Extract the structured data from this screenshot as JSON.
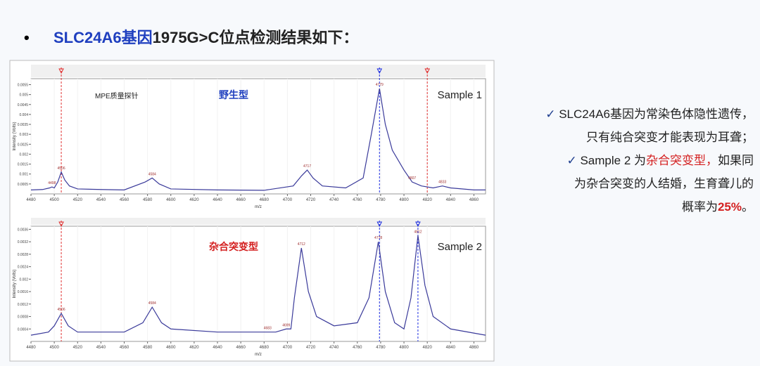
{
  "slide": {
    "bullet": "•",
    "title": [
      {
        "text": "SLC24A6基因",
        "color": "#1f3fbf"
      },
      {
        "text": "1975G>C位点检测结果如下：",
        "color": "#222222"
      }
    ],
    "notes": [
      [
        {
          "text": "✓ ",
          "color": "#1f3f8f"
        },
        {
          "text": "SLC24A6基因为常染色体隐性遗传，",
          "color": "#222222"
        }
      ],
      [
        {
          "text": "只有纯合突变才能表现为耳聋；",
          "color": "#222222"
        }
      ],
      [
        {
          "text": "✓ ",
          "color": "#1f3f8f"
        },
        {
          "text": "Sample 2 为",
          "color": "#222222"
        },
        {
          "text": "杂合突变型，",
          "color": "#d42020"
        },
        {
          "text": "如果同",
          "color": "#222222"
        }
      ],
      [
        {
          "text": "为杂合突变的人结婚，生育聋儿的",
          "color": "#222222"
        }
      ],
      [
        {
          "text": "概率为",
          "color": "#222222"
        },
        {
          "text": "25%",
          "color": "#d42020"
        },
        {
          "text": "。",
          "color": "#222222"
        }
      ]
    ]
  },
  "chart_data": [
    {
      "type": "line",
      "color": "#3a3a9a",
      "ylabel": "Intensity (Volts)",
      "xlabel": "m/z",
      "annotations": [
        {
          "text": "MPE质量探针",
          "color": "#222222"
        },
        {
          "text": "野生型",
          "color": "#1f3fbf"
        },
        {
          "text": "Sample 1",
          "color": "#222222"
        }
      ],
      "x": [
        4480,
        4490,
        4496,
        4498,
        4500,
        4503,
        4506,
        4509,
        4513,
        4520,
        4540,
        4560,
        4578,
        4584,
        4590,
        4600,
        4640,
        4680,
        4705,
        4712,
        4717,
        4722,
        4730,
        4750,
        4765,
        4772,
        4779,
        4784,
        4790,
        4800,
        4807,
        4815,
        4825,
        4833,
        4840,
        4860,
        4870
      ],
      "values": [
        0.0002,
        0.00022,
        0.0003,
        0.00035,
        0.0003,
        0.0006,
        0.0011,
        0.0007,
        0.0004,
        0.00025,
        0.00022,
        0.0002,
        0.0006,
        0.0008,
        0.0005,
        0.00025,
        0.0002,
        0.00018,
        0.0004,
        0.0009,
        0.0012,
        0.0008,
        0.0004,
        0.0003,
        0.0008,
        0.003,
        0.0053,
        0.0035,
        0.0022,
        0.0012,
        0.0006,
        0.0004,
        0.0003,
        0.0004,
        0.0003,
        0.0002,
        0.0002
      ],
      "peaks": [
        4498,
        4506,
        4584,
        4717,
        4779,
        4807,
        4833
      ],
      "markers": [
        {
          "x": 4506,
          "color": "#e03030"
        },
        {
          "x": 4779,
          "color": "#2030e0"
        },
        {
          "x": 4820,
          "color": "#e03030"
        }
      ],
      "xlim": [
        4480,
        4870
      ],
      "ylim": [
        0,
        0.0058
      ],
      "xticks": [
        4480,
        4500,
        4520,
        4540,
        4560,
        4580,
        4600,
        4620,
        4640,
        4660,
        4680,
        4700,
        4720,
        4740,
        4760,
        4780,
        4800,
        4820,
        4840,
        4860
      ],
      "yticks": [
        0.0005,
        0.001,
        0.0015,
        0.002,
        0.0025,
        0.003,
        0.0035,
        0.004,
        0.0045,
        0.005,
        0.0055
      ]
    },
    {
      "type": "line",
      "color": "#3a3a9a",
      "ylabel": "Intensity (Volts)",
      "xlabel": "m/z",
      "annotations": [
        {
          "text": "杂合突变型",
          "color": "#d42020"
        },
        {
          "text": "Sample 2",
          "color": "#222222"
        }
      ],
      "x": [
        4480,
        4495,
        4500,
        4506,
        4512,
        4520,
        4560,
        4576,
        4584,
        4592,
        4600,
        4640,
        4683,
        4690,
        4699,
        4703,
        4706,
        4712,
        4718,
        4725,
        4740,
        4760,
        4770,
        4778,
        4784,
        4792,
        4800,
        4806,
        4812,
        4818,
        4825,
        4840,
        4870
      ],
      "values": [
        0.0002,
        0.0003,
        0.0005,
        0.0009,
        0.0005,
        0.0003,
        0.0003,
        0.0006,
        0.0011,
        0.0006,
        0.0004,
        0.0003,
        0.0003,
        0.0003,
        0.0004,
        0.0004,
        0.0014,
        0.003,
        0.0016,
        0.0008,
        0.0005,
        0.0006,
        0.0014,
        0.0032,
        0.0016,
        0.0006,
        0.0004,
        0.0014,
        0.0034,
        0.0018,
        0.0008,
        0.0004,
        0.0002
      ],
      "peaks": [
        4506,
        4584,
        4683,
        4699,
        4712,
        4778,
        4812
      ],
      "markers": [
        {
          "x": 4506,
          "color": "#e03030"
        },
        {
          "x": 4779,
          "color": "#2030e0"
        },
        {
          "x": 4812,
          "color": "#2030e0"
        }
      ],
      "xlim": [
        4480,
        4870
      ],
      "ylim": [
        0,
        0.0037
      ],
      "xticks": [
        4480,
        4500,
        4520,
        4540,
        4560,
        4580,
        4600,
        4620,
        4640,
        4660,
        4680,
        4700,
        4720,
        4740,
        4760,
        4780,
        4800,
        4820,
        4840,
        4860
      ],
      "yticks": [
        0.0004,
        0.0008,
        0.0012,
        0.0016,
        0.002,
        0.0024,
        0.0028,
        0.0032,
        0.0036
      ]
    }
  ]
}
